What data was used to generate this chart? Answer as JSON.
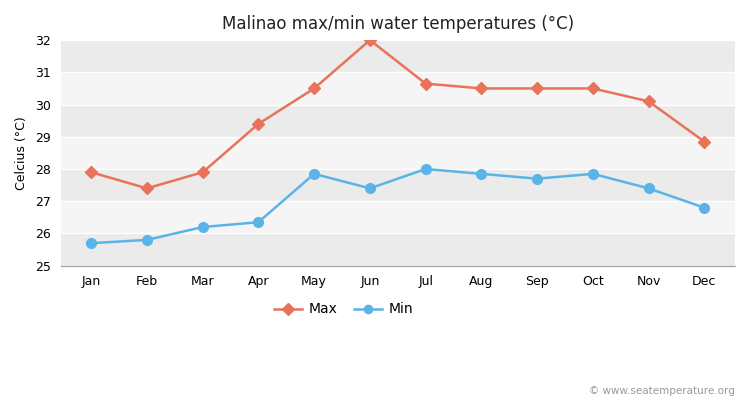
{
  "title": "Malinao max/min water temperatures (°C)",
  "ylabel": "Celcius (°C)",
  "months": [
    "Jan",
    "Feb",
    "Mar",
    "Apr",
    "May",
    "Jun",
    "Jul",
    "Aug",
    "Sep",
    "Oct",
    "Nov",
    "Dec"
  ],
  "max_values": [
    27.9,
    27.4,
    27.9,
    29.4,
    30.5,
    32.0,
    30.65,
    30.5,
    30.5,
    30.5,
    30.1,
    28.85
  ],
  "min_values": [
    25.7,
    25.8,
    26.2,
    26.35,
    27.85,
    27.4,
    28.0,
    27.85,
    27.7,
    27.85,
    27.4,
    26.8
  ],
  "max_color": "#e8735a",
  "min_color": "#5ab4e8",
  "bg_color": "#ffffff",
  "plot_bg_color": "#ffffff",
  "band_color_light": "#ebebeb",
  "band_color_dark": "#f5f5f5",
  "ylim": [
    25,
    32
  ],
  "yticks": [
    25,
    26,
    27,
    28,
    29,
    30,
    31,
    32
  ],
  "legend_labels": [
    "Max",
    "Min"
  ],
  "watermark": "© www.seatemperature.org",
  "title_fontsize": 12,
  "axis_label_fontsize": 9,
  "tick_fontsize": 9,
  "legend_fontsize": 10,
  "watermark_fontsize": 7.5
}
